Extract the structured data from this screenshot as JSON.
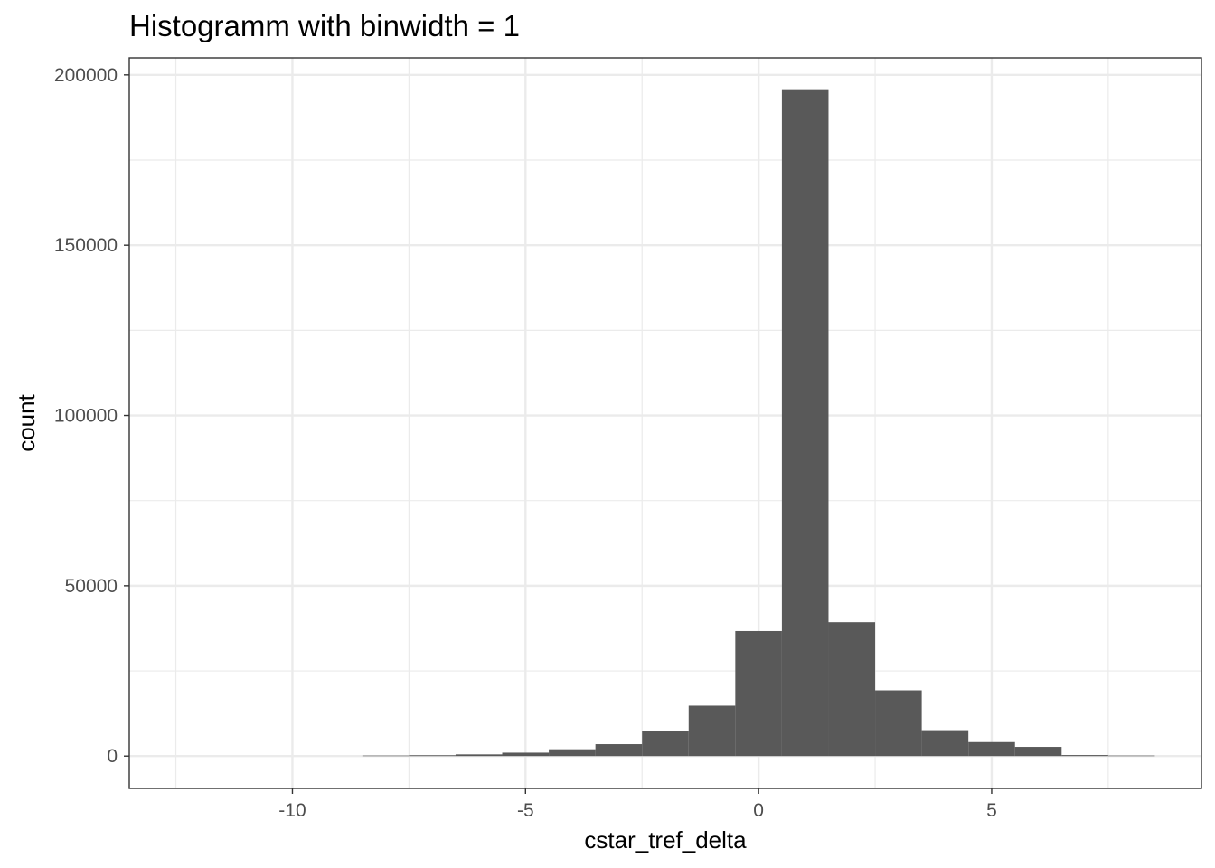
{
  "chart_data": {
    "type": "bar",
    "title": "Histogramm with binwidth = 1",
    "xlabel": "cstar_tref_delta",
    "ylabel": "count",
    "binwidth": 1,
    "xlim": [
      -13.5,
      9.5
    ],
    "ylim": [
      -9500,
      205000
    ],
    "x_ticks": [
      -10,
      -5,
      0,
      5
    ],
    "x_tick_labels": [
      "-10",
      "-5",
      "0",
      "5"
    ],
    "y_ticks": [
      0,
      50000,
      100000,
      150000,
      200000
    ],
    "y_tick_labels": [
      "0",
      "50000",
      "100000",
      "150000",
      "200000"
    ],
    "grid": true,
    "bar_color": "#595959",
    "bins": [
      {
        "x": -8,
        "count": 150
      },
      {
        "x": -7,
        "count": 250
      },
      {
        "x": -6,
        "count": 500
      },
      {
        "x": -5,
        "count": 1000
      },
      {
        "x": -4,
        "count": 2000
      },
      {
        "x": -3,
        "count": 3500
      },
      {
        "x": -2,
        "count": 7300
      },
      {
        "x": -1,
        "count": 14800
      },
      {
        "x": 0,
        "count": 36700
      },
      {
        "x": 1,
        "count": 195800
      },
      {
        "x": 2,
        "count": 39300
      },
      {
        "x": 3,
        "count": 19300
      },
      {
        "x": 4,
        "count": 7600
      },
      {
        "x": 5,
        "count": 4100
      },
      {
        "x": 6,
        "count": 2700
      },
      {
        "x": 7,
        "count": 300
      },
      {
        "x": 8,
        "count": 150
      }
    ]
  }
}
